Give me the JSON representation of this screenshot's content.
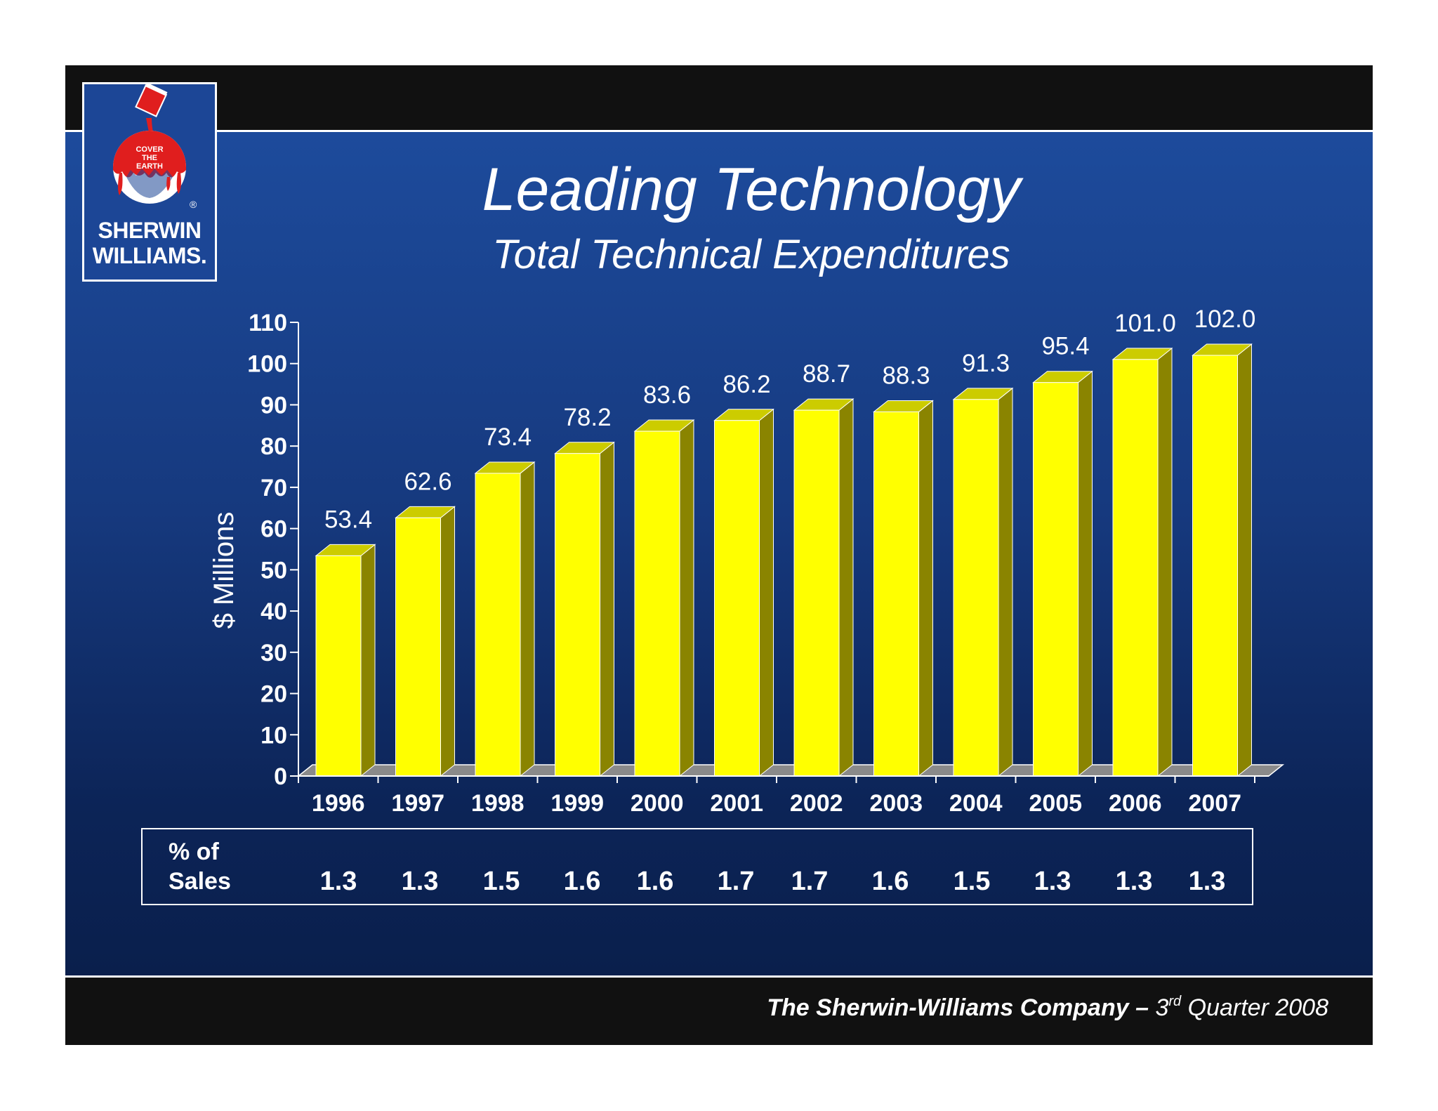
{
  "logo": {
    "slogan_line1": "COVER",
    "slogan_line2": "THE",
    "slogan_line3": "EARTH",
    "name_line1": "SHERWIN",
    "name_line2": "WILLIAMS.",
    "registered_mark": "®"
  },
  "title": "Leading Technology",
  "subtitle": "Total Technical Expenditures",
  "chart_data": {
    "type": "bar",
    "title": "Leading Technology",
    "subtitle": "Total Technical Expenditures",
    "xlabel": "",
    "ylabel": "$ Millions",
    "categories": [
      "1996",
      "1997",
      "1998",
      "1999",
      "2000",
      "2001",
      "2002",
      "2003",
      "2004",
      "2005",
      "2006",
      "2007"
    ],
    "values": [
      53.4,
      62.6,
      73.4,
      78.2,
      83.6,
      86.2,
      88.7,
      88.3,
      91.3,
      95.4,
      101.0,
      102.0
    ],
    "value_labels": [
      "53.4",
      "62.6",
      "73.4",
      "78.2",
      "83.6",
      "86.2",
      "88.7",
      "88.3",
      "91.3",
      "95.4",
      "101.0",
      "102.0"
    ],
    "ylim": [
      0,
      110
    ],
    "yticks": [
      "0",
      "10",
      "20",
      "30",
      "40",
      "50",
      "60",
      "70",
      "80",
      "90",
      "100",
      "110"
    ],
    "bar_style": "3d",
    "grid": false,
    "legend": "none",
    "colors": {
      "bar": "#ffff00",
      "bar_side": "#8a8400",
      "bar_top": "#cccc00",
      "floor": "#8a8a8a"
    }
  },
  "sales_table": {
    "label_line1": "% of",
    "label_line2": "Sales",
    "values": [
      "1.3",
      "1.3",
      "1.5",
      "1.6",
      "1.6",
      "1.7",
      "1.7",
      "1.6",
      "1.5",
      "1.3",
      "1.3",
      "1.3"
    ]
  },
  "footer": {
    "company": "The Sherwin-Williams Company –",
    "quarter_num": "3",
    "quarter_sup": "rd",
    "quarter_rest": "Quarter 2008"
  },
  "colors": {
    "background_top": "#1d4b9c",
    "background_bottom": "#0a1f4c",
    "band": "#111111",
    "text": "#ffffff",
    "logo_red": "#e01e1e"
  }
}
